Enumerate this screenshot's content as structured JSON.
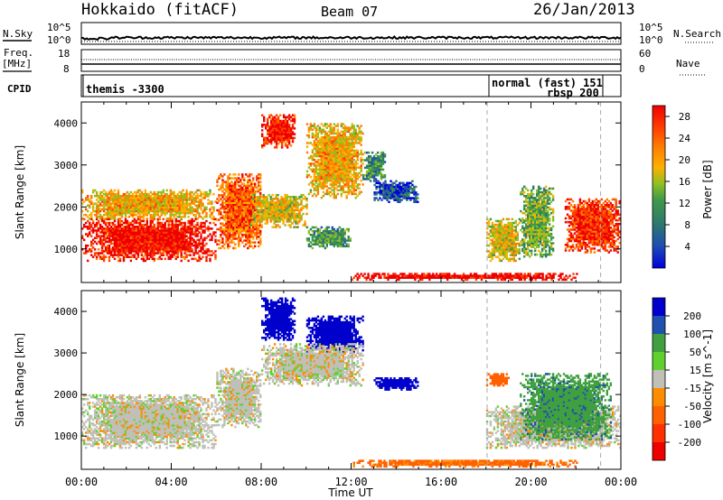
{
  "header": {
    "station": "Hokkaido (fitACF)",
    "beam": "Beam 07",
    "date": "26/Jan/2013"
  },
  "top_panels": {
    "nsky_label": "N.Sky",
    "nsearch_label": "N.Search",
    "noise_ticks_left": [
      "10^5",
      "10^0"
    ],
    "noise_ticks_right": [
      "10^5",
      "10^0"
    ],
    "freq_label_1": "Freq.",
    "freq_label_2": "[MHz]",
    "freq_ticks": [
      "18",
      "8"
    ],
    "nave_label": "Nave",
    "nave_ticks": [
      "60",
      "0"
    ],
    "cpid_label": "CPID",
    "cpid_entries": [
      "themis -3300",
      "normal (fast) 151",
      "rbsp 200"
    ]
  },
  "chart_data": [
    {
      "type": "heatmap",
      "title": "",
      "xlabel": "Time UT",
      "ylabel": "Slant Range [km]",
      "x_ticks": [
        "00:00",
        "04:00",
        "08:00",
        "12:00",
        "16:00",
        "20:00",
        "00:00"
      ],
      "xlim_hours": [
        0,
        24
      ],
      "y_ticks": [
        "1000",
        "2000",
        "3000",
        "4000"
      ],
      "ylim": [
        200,
        4500
      ],
      "colorbar": {
        "label": "Power [dB]",
        "ticks": [
          "28",
          "24",
          "20",
          "16",
          "12",
          "8",
          "4"
        ],
        "range": [
          0,
          30
        ],
        "colors": [
          "#0000dd",
          "#1f4fb0",
          "#2f7a6a",
          "#3f9a4a",
          "#90c020",
          "#ffb000",
          "#ff8000",
          "#ff4000",
          "#ee0000"
        ]
      },
      "blobs": [
        {
          "t0": 0.0,
          "t1": 6.0,
          "r0": 700,
          "r1": 1700,
          "level": 0.9
        },
        {
          "t0": 0.0,
          "t1": 6.0,
          "r0": 1700,
          "r1": 2400,
          "level": 0.6
        },
        {
          "t0": 6.0,
          "t1": 8.0,
          "r0": 1000,
          "r1": 2800,
          "level": 0.75
        },
        {
          "t0": 8.0,
          "t1": 9.5,
          "r0": 3400,
          "r1": 4200,
          "level": 0.9
        },
        {
          "t0": 7.5,
          "t1": 10.0,
          "r0": 1500,
          "r1": 2300,
          "level": 0.55
        },
        {
          "t0": 10.0,
          "t1": 12.5,
          "r0": 2200,
          "r1": 4000,
          "level": 0.6
        },
        {
          "t0": 12.5,
          "t1": 13.5,
          "r0": 2600,
          "r1": 3300,
          "level": 0.3
        },
        {
          "t0": 13.0,
          "t1": 15.0,
          "r0": 2100,
          "r1": 2600,
          "level": 0.15
        },
        {
          "t0": 10.0,
          "t1": 12.0,
          "r0": 1000,
          "r1": 1500,
          "level": 0.35
        },
        {
          "t0": 18.0,
          "t1": 19.5,
          "r0": 700,
          "r1": 1700,
          "level": 0.55
        },
        {
          "t0": 19.5,
          "t1": 21.0,
          "r0": 800,
          "r1": 2500,
          "level": 0.4
        },
        {
          "t0": 21.5,
          "t1": 24.0,
          "r0": 900,
          "r1": 2200,
          "level": 0.85
        },
        {
          "t0": 12.0,
          "t1": 22.0,
          "r0": 250,
          "r1": 400,
          "level": 0.95
        }
      ]
    },
    {
      "type": "heatmap",
      "title": "",
      "xlabel": "Time UT",
      "ylabel": "Slant Range [km]",
      "x_ticks": [
        "00:00",
        "04:00",
        "08:00",
        "12:00",
        "16:00",
        "20:00",
        "00:00"
      ],
      "xlim_hours": [
        0,
        24
      ],
      "y_ticks": [
        "1000",
        "2000",
        "3000",
        "4000"
      ],
      "ylim": [
        200,
        4500
      ],
      "colorbar": {
        "label": "Velocity [m s^-1]",
        "ticks": [
          "200",
          "100",
          "50",
          "15",
          "-15",
          "-50",
          "-100",
          "-200"
        ],
        "range": [
          -250,
          250
        ],
        "colors": [
          "#0000cc",
          "#2050b0",
          "#40a040",
          "#60d030",
          "#c0c0b8",
          "#ff8c00",
          "#ff6000",
          "#ff3000",
          "#ee0000"
        ]
      },
      "blobs": [
        {
          "t0": 0.0,
          "t1": 6.0,
          "r0": 700,
          "r1": 2000,
          "vel": 0
        },
        {
          "t0": 6.0,
          "t1": 8.0,
          "r0": 1200,
          "r1": 2600,
          "vel": 0
        },
        {
          "t0": 8.0,
          "t1": 9.5,
          "r0": 3300,
          "r1": 4300,
          "vel": 220
        },
        {
          "t0": 10.0,
          "t1": 12.5,
          "r0": 3000,
          "r1": 3900,
          "vel": 200
        },
        {
          "t0": 8.0,
          "t1": 12.5,
          "r0": 2200,
          "r1": 3200,
          "vel": 0
        },
        {
          "t0": 13.0,
          "t1": 15.0,
          "r0": 2100,
          "r1": 2400,
          "vel": 180
        },
        {
          "t0": 18.0,
          "t1": 24.0,
          "r0": 700,
          "r1": 1700,
          "vel": 0
        },
        {
          "t0": 19.5,
          "t1": 23.5,
          "r0": 900,
          "r1": 2500,
          "vel": 60
        },
        {
          "t0": 18.0,
          "t1": 19.0,
          "r0": 2200,
          "r1": 2500,
          "vel": -70
        },
        {
          "t0": 12.0,
          "t1": 22.0,
          "r0": 250,
          "r1": 420,
          "vel": -60
        }
      ]
    }
  ]
}
